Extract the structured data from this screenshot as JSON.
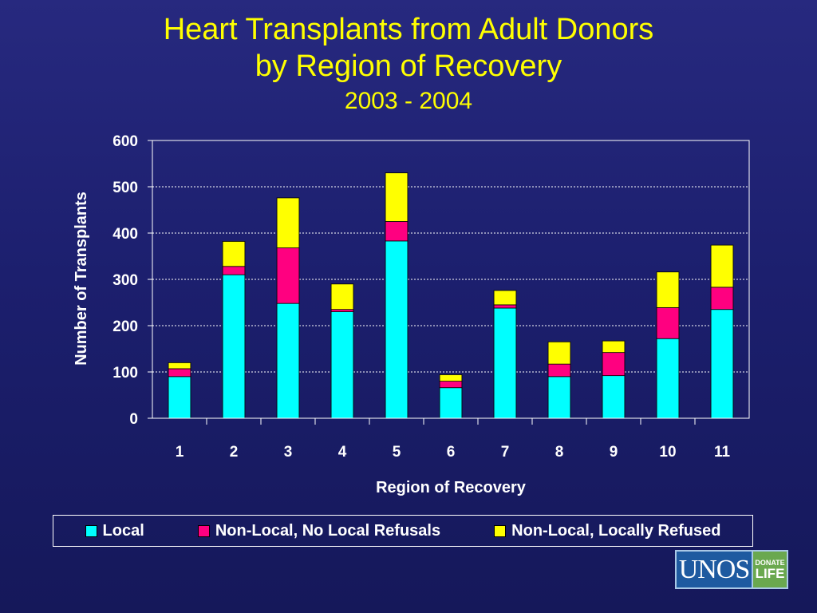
{
  "title_line1": "Heart Transplants from Adult Donors",
  "title_line2": "by Region of Recovery",
  "subtitle": "2003 - 2004",
  "logo": {
    "name": "UNOS",
    "side_top": "DONATE",
    "side_bottom": "LIFE"
  },
  "colors": {
    "local": "#00ffff",
    "non_local_no_refusals": "#ff0080",
    "non_local_refused": "#ffff00",
    "title": "#ffff00"
  },
  "chart_data": {
    "type": "bar",
    "stacked": true,
    "title": "Heart Transplants from Adult Donors by Region of Recovery",
    "subtitle": "2003 - 2004",
    "xlabel": "Region of Recovery",
    "ylabel": "Number of Transplants",
    "ylim": [
      0,
      600
    ],
    "yticks": [
      0,
      100,
      200,
      300,
      400,
      500,
      600
    ],
    "grid": true,
    "legend_position": "bottom",
    "categories": [
      "1",
      "2",
      "3",
      "4",
      "5",
      "6",
      "7",
      "8",
      "9",
      "10",
      "11"
    ],
    "series": [
      {
        "name": "Local",
        "color": "#00ffff",
        "values": [
          90,
          310,
          248,
          230,
          383,
          66,
          238,
          90,
          92,
          172,
          235
        ]
      },
      {
        "name": "Non-Local, No Local Refusals",
        "color": "#ff0080",
        "values": [
          17,
          18,
          120,
          5,
          42,
          14,
          7,
          27,
          50,
          67,
          48
        ]
      },
      {
        "name": "Non-Local, Locally Refused",
        "color": "#ffff00",
        "values": [
          13,
          54,
          108,
          55,
          105,
          14,
          31,
          48,
          25,
          77,
          91
        ]
      }
    ]
  }
}
